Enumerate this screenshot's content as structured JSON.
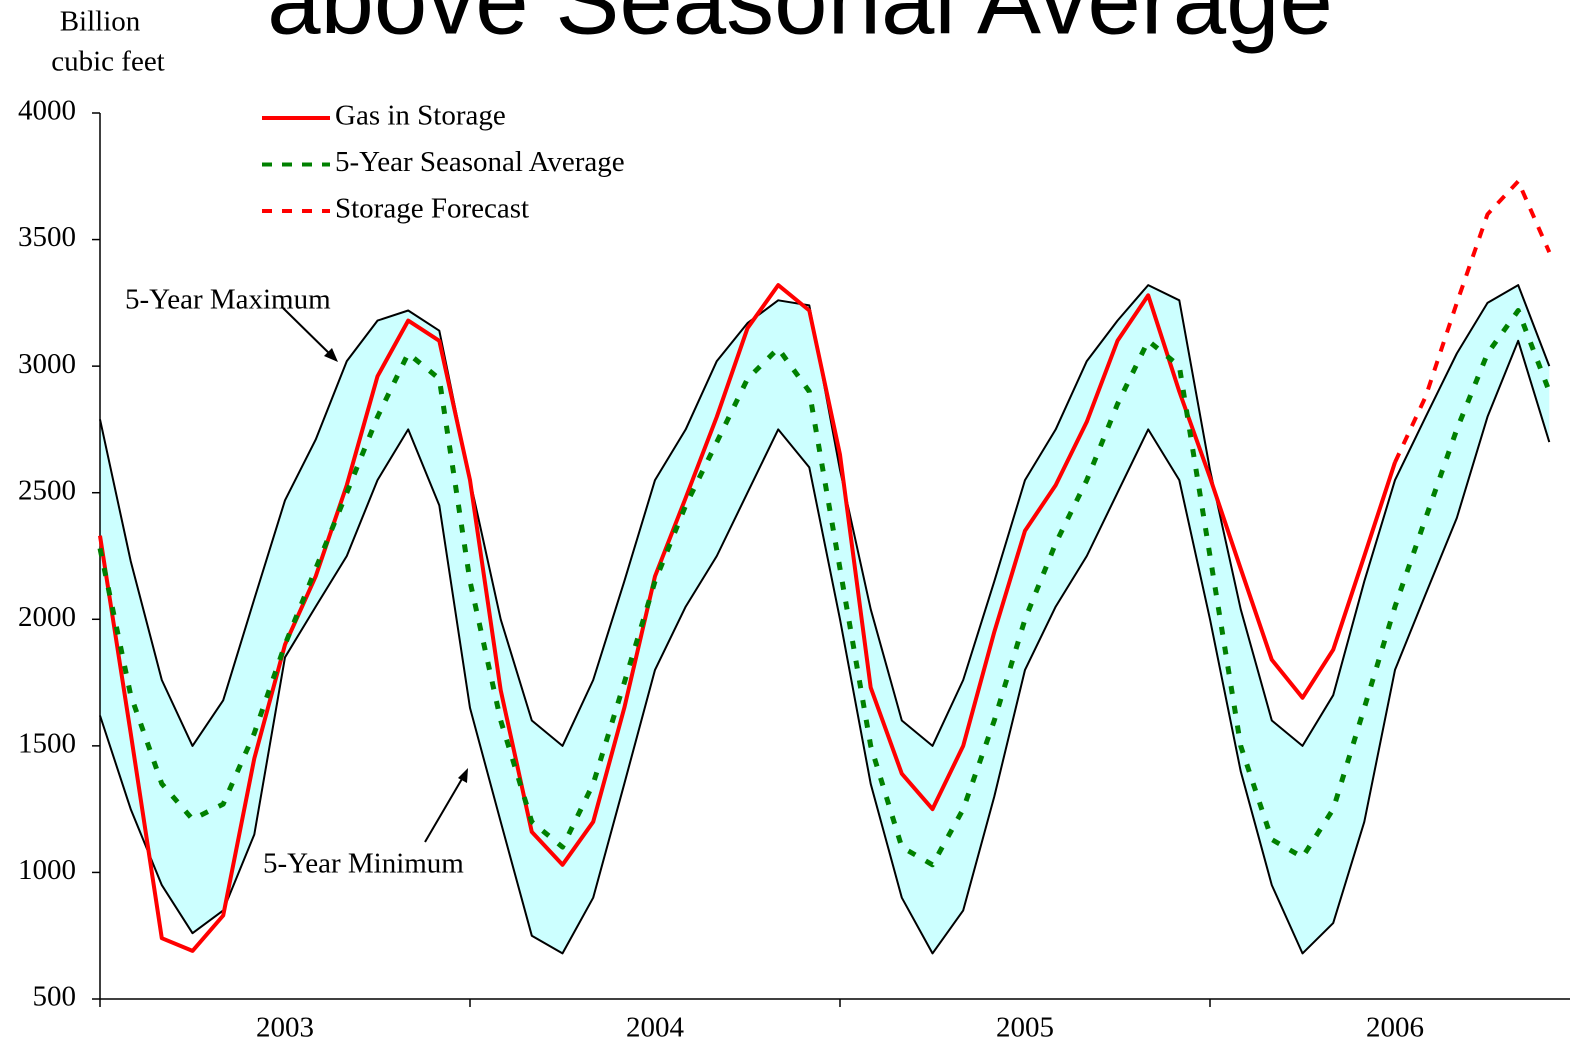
{
  "chart_data": {
    "type": "line",
    "title": "above Seasonal Average",
    "y_label": [
      "Billion",
      "cubic feet"
    ],
    "categories": [
      "2003",
      "2004",
      "2005",
      "2006"
    ],
    "xlim": [
      2003,
      2007
    ],
    "xticks": [
      2003,
      2004,
      2005,
      2006
    ],
    "ylim": [
      500,
      4000
    ],
    "yticks": [
      500,
      1000,
      1500,
      2000,
      2500,
      3000,
      3500,
      4000
    ],
    "band_color": "#ccffff",
    "x": [
      2003,
      2003.083,
      2003.167,
      2003.25,
      2003.333,
      2003.417,
      2003.5,
      2003.583,
      2003.667,
      2003.75,
      2003.833,
      2003.917,
      2004,
      2004.083,
      2004.167,
      2004.25,
      2004.333,
      2004.417,
      2004.5,
      2004.583,
      2004.667,
      2004.75,
      2004.833,
      2004.917,
      2005,
      2005.083,
      2005.167,
      2005.25,
      2005.333,
      2005.417,
      2005.5,
      2005.583,
      2005.667,
      2005.75,
      2005.833,
      2005.917,
      2006,
      2006.083,
      2006.167,
      2006.25,
      2006.333,
      2006.417,
      2006.5,
      2006.583,
      2006.667,
      2006.75,
      2006.833,
      2006.917
    ],
    "series": [
      {
        "name": "5-Year Maximum",
        "color": "#000000",
        "style": "solid",
        "width": 2,
        "legend": false,
        "values": [
          2790,
          2230,
          1760,
          1500,
          1680,
          2080,
          2470,
          2710,
          3020,
          3180,
          3220,
          3140,
          2550,
          2000,
          1600,
          1500,
          1760,
          2150,
          2550,
          2750,
          3020,
          3170,
          3260,
          3240,
          2590,
          2040,
          1600,
          1500,
          1760,
          2150,
          2550,
          2750,
          3020,
          3180,
          3320,
          3260,
          2590,
          2040,
          1600,
          1500,
          1700,
          2150,
          2550,
          2800,
          3050,
          3250,
          3320,
          3000
        ]
      },
      {
        "name": "5-Year Minimum",
        "color": "#000000",
        "style": "solid",
        "width": 2,
        "legend": false,
        "values": [
          1620,
          1250,
          950,
          760,
          850,
          1150,
          1850,
          2050,
          2250,
          2550,
          2750,
          2450,
          1650,
          1200,
          750,
          680,
          900,
          1350,
          1800,
          2050,
          2250,
          2500,
          2750,
          2600,
          2000,
          1350,
          900,
          680,
          850,
          1300,
          1800,
          2050,
          2250,
          2500,
          2750,
          2550,
          2000,
          1400,
          950,
          680,
          800,
          1200,
          1800,
          2100,
          2400,
          2800,
          3100,
          2700
        ]
      },
      {
        "name": "Gas in Storage",
        "color": "#ff0000",
        "style": "solid",
        "width": 4,
        "legend": true,
        "values": [
          2330,
          1550,
          740,
          690,
          830,
          1450,
          1900,
          2170,
          2530,
          2960,
          3180,
          3100,
          2550,
          1720,
          1160,
          1030,
          1200,
          1650,
          2170,
          2480,
          2800,
          3150,
          3320,
          3220,
          2650,
          1730,
          1390,
          1250,
          1500,
          1950,
          2350,
          2530,
          2780,
          3100,
          3280,
          2900,
          2560,
          2200,
          1840,
          1690,
          1880,
          2250,
          2620,
          null,
          null,
          null,
          null,
          null
        ]
      },
      {
        "name": "5-Year Seasonal Average",
        "color": "#008000",
        "style": "dotted",
        "width": 5,
        "legend": true,
        "values": [
          2280,
          1700,
          1350,
          1210,
          1270,
          1550,
          1900,
          2200,
          2500,
          2800,
          3050,
          2950,
          2150,
          1600,
          1200,
          1100,
          1350,
          1750,
          2150,
          2450,
          2700,
          2950,
          3070,
          2900,
          2200,
          1500,
          1100,
          1030,
          1250,
          1600,
          2000,
          2300,
          2550,
          2850,
          3100,
          3000,
          2250,
          1500,
          1130,
          1060,
          1250,
          1650,
          2050,
          2400,
          2750,
          3050,
          3220,
          2900
        ]
      },
      {
        "name": "Storage Forecast",
        "color": "#ff0000",
        "style": "dashed",
        "width": 4,
        "legend": true,
        "values": [
          null,
          null,
          null,
          null,
          null,
          null,
          null,
          null,
          null,
          null,
          null,
          null,
          null,
          null,
          null,
          null,
          null,
          null,
          null,
          null,
          null,
          null,
          null,
          null,
          null,
          null,
          null,
          null,
          null,
          null,
          null,
          null,
          null,
          null,
          null,
          null,
          null,
          null,
          null,
          null,
          null,
          null,
          2620,
          2880,
          3250,
          3600,
          3730,
          3450
        ]
      }
    ]
  }
}
